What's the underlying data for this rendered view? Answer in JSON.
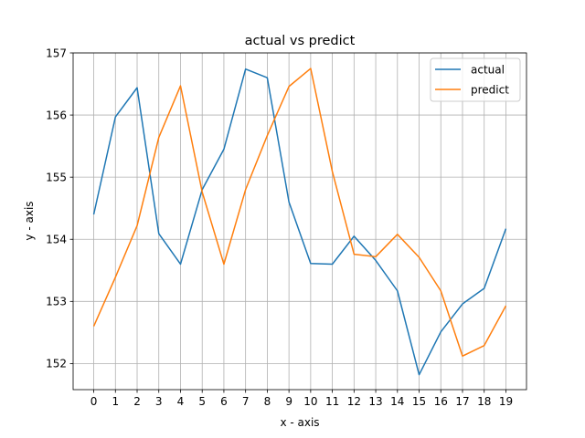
{
  "chart_data": {
    "type": "line",
    "title": "actual vs predict",
    "xlabel": "x - axis",
    "ylabel": "y - axis",
    "x": [
      0,
      1,
      2,
      3,
      4,
      5,
      6,
      7,
      8,
      9,
      10,
      11,
      12,
      13,
      14,
      15,
      16,
      17,
      18,
      19
    ],
    "xlim": [
      -0.95,
      19.95
    ],
    "ylim": [
      151.58,
      157.0
    ],
    "xticks": [
      "0",
      "1",
      "2",
      "3",
      "4",
      "5",
      "6",
      "7",
      "8",
      "9",
      "10",
      "11",
      "12",
      "13",
      "14",
      "15",
      "16",
      "17",
      "18",
      "19"
    ],
    "yticks": [
      152,
      153,
      154,
      155,
      156,
      157
    ],
    "grid": true,
    "legend_position": "top-right",
    "series": [
      {
        "name": "actual",
        "color": "#1f77b4",
        "values": [
          154.4,
          155.97,
          156.44,
          154.09,
          153.6,
          154.8,
          155.45,
          156.74,
          156.6,
          154.6,
          153.61,
          153.6,
          154.05,
          153.66,
          153.17,
          151.82,
          152.51,
          152.96,
          153.21,
          154.17
        ]
      },
      {
        "name": "predict",
        "color": "#ff7f0e",
        "values": [
          152.6,
          153.39,
          154.22,
          155.64,
          156.47,
          154.76,
          153.6,
          154.8,
          155.67,
          156.46,
          156.75,
          155.09,
          153.76,
          153.72,
          154.08,
          153.71,
          153.17,
          152.12,
          152.29,
          152.93
        ]
      }
    ]
  }
}
